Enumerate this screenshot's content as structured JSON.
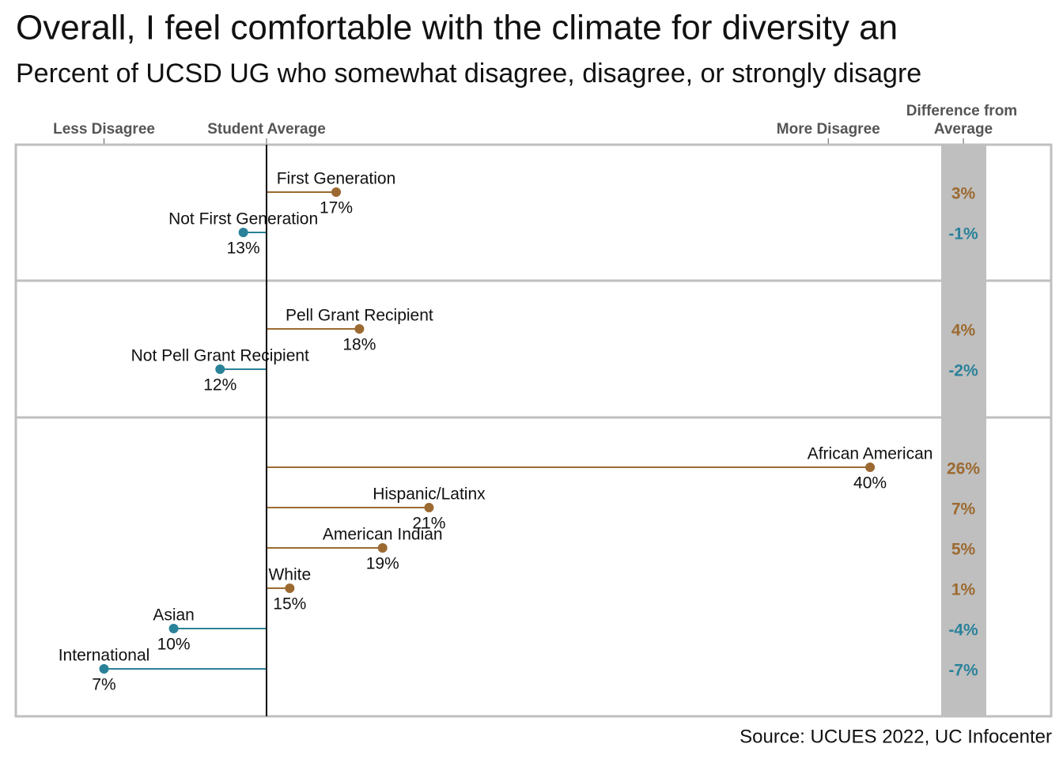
{
  "chart_data": {
    "type": "dot",
    "title": "Overall, I feel comfortable with the climate for diversity an",
    "subtitle": "Percent of UCSD UG who somewhat disagree, disagree, or strongly disagre",
    "source": "Source: UCUES 2022, UC Infocenter",
    "difference_header": [
      "Difference from",
      "Average"
    ],
    "average": 14,
    "xlim": [
      3.2,
      47.8
    ],
    "xticks": [
      {
        "value": 7,
        "label": "Less Disagree"
      },
      {
        "value": 14,
        "label": "Student Average"
      },
      {
        "value": 38.2,
        "label": "More Disagree"
      }
    ],
    "above_color": "#9c6a31",
    "below_color": "#2a8299",
    "groups": [
      {
        "categories": [
          "First Generation",
          "Not First Generation"
        ],
        "values": [
          17,
          13
        ],
        "value_labels": [
          "17%",
          "13%"
        ],
        "differences": [
          3,
          -1
        ],
        "difference_labels": [
          "3%",
          "-1%"
        ]
      },
      {
        "categories": [
          "Pell Grant Recipient",
          "Not Pell Grant Recipient"
        ],
        "values": [
          18,
          12
        ],
        "value_labels": [
          "18%",
          "12%"
        ],
        "differences": [
          4,
          -2
        ],
        "difference_labels": [
          "4%",
          "-2%"
        ]
      },
      {
        "categories": [
          "African American",
          "Hispanic/Latinx",
          "American Indian",
          "White",
          "Asian",
          "International"
        ],
        "values": [
          40,
          21,
          19,
          15,
          10,
          7
        ],
        "value_labels": [
          "40%",
          "21%",
          "19%",
          "15%",
          "10%",
          "7%"
        ],
        "differences": [
          26,
          7,
          5,
          1,
          -4,
          -7
        ],
        "difference_labels": [
          "26%",
          "7%",
          "5%",
          "1%",
          "-4%",
          "-7%"
        ]
      }
    ]
  }
}
